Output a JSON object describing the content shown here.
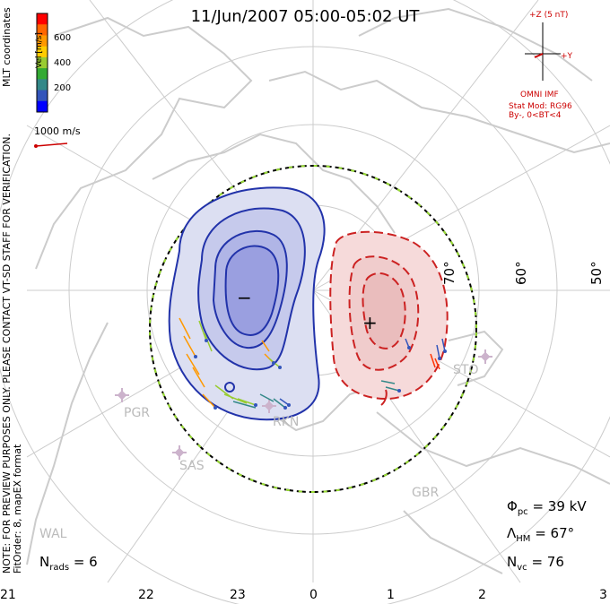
{
  "title": "11/Jun/2007 05:00-05:02 UT",
  "colorbar": {
    "label": "Vel [m/s]",
    "ticks": [
      "600",
      "400",
      "200"
    ],
    "colors": [
      "#ff0000",
      "#ff6600",
      "#ff9900",
      "#ffcc00",
      "#99cc33",
      "#33aa33",
      "#338888",
      "#3355bb",
      "#0000ff"
    ]
  },
  "coord_label": "MLT coordinates",
  "velocity_scale": "1000 m/s",
  "imf": {
    "plus_z": "+Z (5 nT)",
    "plus_y": "+Y",
    "source": "OMNI IMF",
    "model": "Stat Mod: RG96",
    "condition": "By-, 0<BT<4"
  },
  "note_line1": "NOTE: FOR PREVIEW PURPOSES ONLY. PLEASE CONTACT VT-SD STAFF FOR VERIFICATION.",
  "note_line2": "FitOrder: 8, mapEX format",
  "latitude_labels": [
    "70°",
    "60°",
    "50°"
  ],
  "mlt_labels": [
    "21",
    "22",
    "23",
    "0",
    "1",
    "2",
    "3"
  ],
  "radars": [
    "PGR",
    "RKN",
    "SAS",
    "STO",
    "GBR",
    "WAL"
  ],
  "stats": {
    "nrads_label": "N",
    "nrads_sub": "rads",
    "nrads_value": "= 6",
    "phi_label": "Φ",
    "phi_sub": "pc",
    "phi_value": "= 39 kV",
    "lambda_label": "Λ",
    "lambda_sub": "HM",
    "lambda_value": "= 67°",
    "nvc_label": "N",
    "nvc_sub": "vc",
    "nvc_value": "= 76"
  },
  "potential_markers": {
    "min": "−",
    "max": "+"
  },
  "colors": {
    "negative_cell": "#2233aa",
    "positive_cell": "#cc2222",
    "imf": "#cc0000",
    "coast": "#cccccc",
    "grid": "#cccccc"
  }
}
